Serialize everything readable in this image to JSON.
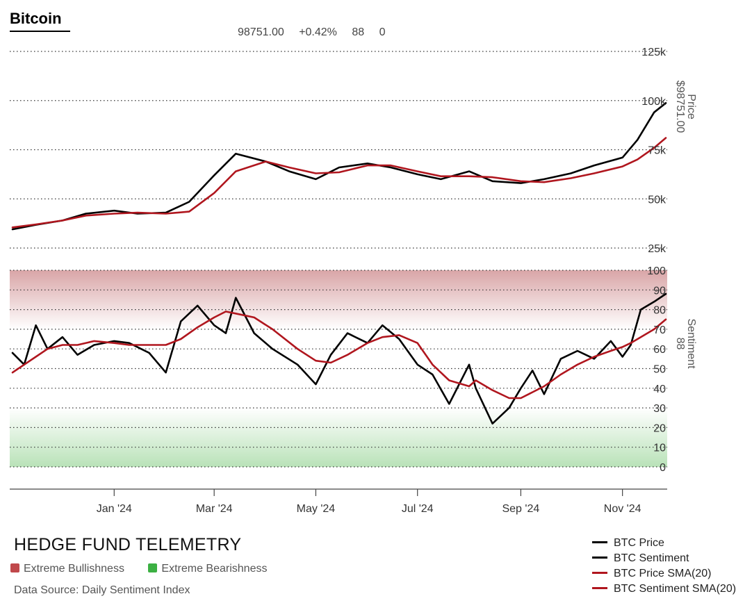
{
  "header": {
    "title": "Bitcoin",
    "stats": [
      "98751.00",
      "+0.42%",
      "88",
      "0"
    ]
  },
  "footer": {
    "brand": "HEDGE FUND TELEMETRY",
    "key": [
      {
        "label": "Extreme Bullishness",
        "color": "#c0484b"
      },
      {
        "label": "Extreme Bearishness",
        "color": "#3cb043"
      }
    ],
    "source": "Data Source: Daily Sentiment Index"
  },
  "legend": [
    {
      "label": "BTC Price",
      "color": "#000000"
    },
    {
      "label": "BTC Sentiment",
      "color": "#000000"
    },
    {
      "label": "BTC Price SMA(20)",
      "color": "#b0161e"
    },
    {
      "label": "BTC Sentiment SMA(20)",
      "color": "#b0161e"
    }
  ],
  "chart_data": [
    {
      "type": "line",
      "panel": "price",
      "ylabel": "Price",
      "last_value_label": "$98751.00",
      "ylim": [
        25000,
        125000
      ],
      "yticks": [
        25000,
        50000,
        75000,
        100000,
        125000
      ],
      "ytick_labels": [
        "25k",
        "50k",
        "75k",
        "100k",
        "125k"
      ],
      "grid": "dotted",
      "x": [
        "2023-11-01",
        "2023-11-15",
        "2023-12-01",
        "2023-12-15",
        "2024-01-01",
        "2024-01-15",
        "2024-02-01",
        "2024-02-15",
        "2024-03-01",
        "2024-03-14",
        "2024-04-01",
        "2024-04-15",
        "2024-05-01",
        "2024-05-15",
        "2024-06-01",
        "2024-06-15",
        "2024-07-01",
        "2024-07-15",
        "2024-08-01",
        "2024-08-15",
        "2024-09-01",
        "2024-09-15",
        "2024-10-01",
        "2024-10-15",
        "2024-11-01",
        "2024-11-10",
        "2024-11-20",
        "2024-11-27"
      ],
      "series": [
        {
          "name": "BTC Price",
          "color": "#000000",
          "values": [
            34500,
            36800,
            39000,
            42500,
            44000,
            42500,
            43000,
            48500,
            62000,
            73000,
            69000,
            64000,
            60000,
            66000,
            68000,
            66000,
            62500,
            60000,
            64000,
            59000,
            58000,
            60000,
            63000,
            67000,
            71000,
            80000,
            94000,
            98751
          ]
        },
        {
          "name": "BTC Price SMA(20)",
          "color": "#b0161e",
          "values": [
            35500,
            37000,
            39000,
            41500,
            42500,
            43000,
            42500,
            43500,
            53000,
            64000,
            69000,
            66000,
            63000,
            63500,
            67000,
            67000,
            64000,
            61500,
            61500,
            61000,
            59000,
            58500,
            60500,
            63000,
            66500,
            70000,
            76000,
            81000
          ]
        }
      ]
    },
    {
      "type": "line",
      "panel": "sentiment",
      "ylabel": "Sentiment",
      "last_value_label": "88",
      "ylim": [
        0,
        100
      ],
      "yticks": [
        0,
        10,
        20,
        30,
        40,
        50,
        60,
        70,
        80,
        90,
        100
      ],
      "ytick_labels": [
        "0",
        "10",
        "20",
        "30",
        "40",
        "50",
        "60",
        "70",
        "80",
        "90",
        "100"
      ],
      "bands": [
        {
          "label": "Extreme Bullishness",
          "from": 70,
          "to": 100,
          "color": "#c0484b"
        },
        {
          "label": "Extreme Bearishness",
          "from": 0,
          "to": 30,
          "color": "#3cb043"
        }
      ],
      "x": [
        "2023-11-01",
        "2023-11-08",
        "2023-11-15",
        "2023-11-22",
        "2023-12-01",
        "2023-12-10",
        "2023-12-20",
        "2024-01-01",
        "2024-01-10",
        "2024-01-22",
        "2024-02-01",
        "2024-02-10",
        "2024-02-20",
        "2024-03-01",
        "2024-03-08",
        "2024-03-14",
        "2024-03-25",
        "2024-04-05",
        "2024-04-20",
        "2024-05-01",
        "2024-05-10",
        "2024-05-20",
        "2024-06-01",
        "2024-06-10",
        "2024-06-20",
        "2024-07-01",
        "2024-07-10",
        "2024-07-20",
        "2024-08-01",
        "2024-08-05",
        "2024-08-15",
        "2024-08-25",
        "2024-09-01",
        "2024-09-08",
        "2024-09-15",
        "2024-09-25",
        "2024-10-05",
        "2024-10-15",
        "2024-10-25",
        "2024-11-01",
        "2024-11-06",
        "2024-11-12",
        "2024-11-20",
        "2024-11-27"
      ],
      "series": [
        {
          "name": "BTC Sentiment",
          "color": "#000000",
          "values": [
            58,
            52,
            72,
            60,
            66,
            57,
            62,
            64,
            63,
            58,
            48,
            74,
            82,
            72,
            68,
            86,
            68,
            60,
            52,
            42,
            57,
            68,
            63,
            72,
            65,
            52,
            47,
            32,
            52,
            40,
            22,
            30,
            40,
            49,
            37,
            55,
            59,
            55,
            64,
            56,
            62,
            80,
            84,
            88
          ]
        },
        {
          "name": "BTC Sentiment SMA(20)",
          "color": "#b0161e",
          "values": [
            48,
            52,
            56,
            60,
            62,
            62,
            64,
            63,
            62,
            62,
            62,
            65,
            71,
            76,
            79,
            78,
            76,
            70,
            60,
            54,
            53,
            57,
            63,
            66,
            67,
            63,
            52,
            44,
            41,
            44,
            39,
            35,
            35,
            38,
            41,
            47,
            52,
            56,
            59,
            61,
            63,
            66,
            70,
            75
          ]
        }
      ]
    }
  ],
  "x_axis": {
    "tick_labels": [
      "Jan '24",
      "Mar '24",
      "May '24",
      "Jul '24",
      "Sep '24",
      "Nov '24"
    ],
    "tick_dates": [
      "2024-01-01",
      "2024-03-01",
      "2024-05-01",
      "2024-07-01",
      "2024-09-01",
      "2024-11-01"
    ]
  }
}
